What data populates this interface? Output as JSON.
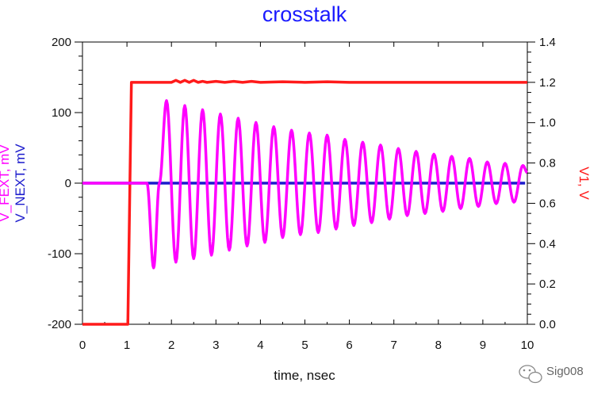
{
  "chart_data": {
    "type": "line",
    "title": "crosstalk",
    "xlabel": "time, nsec",
    "ylabel_left": [
      "V_FEXT, mV",
      "V_NEXT, mV"
    ],
    "ylabel_right": "V1, V",
    "xlim": [
      0,
      10
    ],
    "ylim_left": [
      -200,
      200
    ],
    "ylim_right": [
      0.0,
      1.4
    ],
    "xticks": [
      0,
      1,
      2,
      3,
      4,
      5,
      6,
      7,
      8,
      9,
      10
    ],
    "yticks_left": [
      -200,
      -100,
      0,
      100,
      200
    ],
    "yticks_right": [
      "0.0",
      "0.2",
      "0.4",
      "0.6",
      "0.8",
      "1.0",
      "1.2",
      "1.4"
    ],
    "grid": false,
    "series": [
      {
        "name": "V_FEXT",
        "axis": "left",
        "color": "#ff00ff",
        "x": [
          0,
          1.45,
          1.6,
          1.73,
          1.89,
          2.1,
          2.3,
          2.5,
          2.7,
          2.9,
          3.1,
          3.3,
          3.5,
          3.7,
          3.9,
          4.1,
          4.3,
          4.5,
          4.7,
          4.9,
          5.1,
          5.3,
          5.5,
          5.7,
          5.9,
          6.1,
          6.3,
          6.5,
          6.7,
          6.9,
          7.1,
          7.3,
          7.5,
          7.7,
          7.9,
          8.1,
          8.3,
          8.5,
          8.7,
          8.9,
          9.1,
          9.3,
          9.5,
          9.7,
          9.9,
          10.0
        ],
        "y": [
          0,
          0,
          -120,
          0,
          117,
          -112,
          110,
          -107,
          104,
          -102,
          98,
          -95,
          92,
          -89,
          86,
          -84,
          80,
          -77,
          75,
          -73,
          71,
          -70,
          68,
          -65,
          62,
          -60,
          58,
          -56,
          54,
          -51,
          49,
          -46,
          45,
          -43,
          41,
          -40,
          38,
          -36,
          35,
          -33,
          30,
          -29,
          28,
          -27,
          25,
          15
        ]
      },
      {
        "name": "V_NEXT",
        "axis": "left",
        "color": "#1a1acc",
        "x": [
          0,
          9.95
        ],
        "y": [
          0,
          0
        ]
      },
      {
        "name": "V1",
        "axis": "right",
        "color": "#ff1a1a",
        "x": [
          0,
          1.02,
          1.1,
          1.13,
          1.18,
          2.0,
          2.1,
          2.2,
          2.3,
          2.4,
          2.5,
          2.6,
          2.7,
          2.8,
          3.0,
          3.2,
          3.4,
          3.6,
          3.8,
          4.0,
          4.5,
          5.0,
          5.5,
          6.0,
          7.0,
          8.0,
          9.0,
          10.0
        ],
        "y": [
          0.0,
          0.0,
          1.2,
          1.2,
          1.2,
          1.2,
          1.21,
          1.2,
          1.21,
          1.2,
          1.21,
          1.2,
          1.205,
          1.2,
          1.205,
          1.2,
          1.205,
          1.2,
          1.205,
          1.2,
          1.203,
          1.2,
          1.203,
          1.2,
          1.2,
          1.2,
          1.2,
          1.2
        ]
      }
    ]
  },
  "watermark": "Sig008"
}
